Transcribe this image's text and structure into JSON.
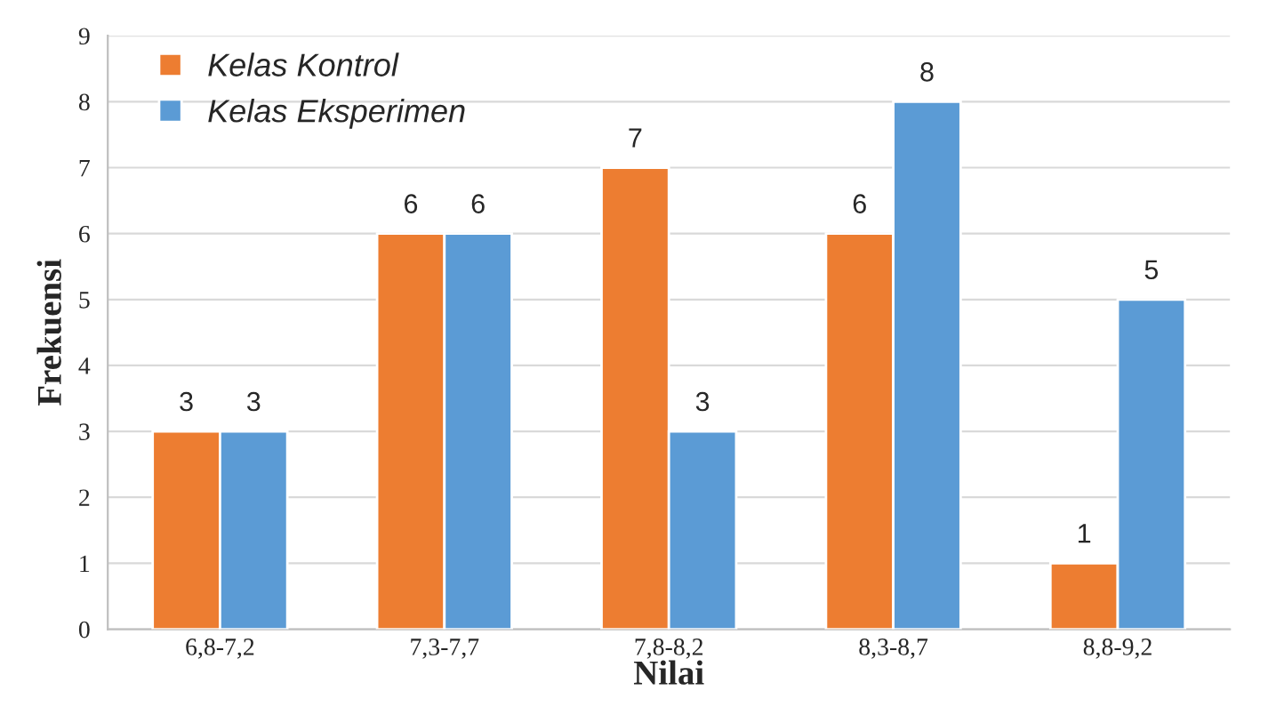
{
  "chart_data": {
    "type": "bar",
    "xlabel": "Nilai",
    "ylabel": "Frekuensi",
    "categories": [
      "6,8-7,2",
      "7,3-7,7",
      "7,8-8,2",
      "8,3-8,7",
      "8,8-9,2"
    ],
    "series": [
      {
        "name": "Kelas Kontrol",
        "color": "#ed7d31",
        "values": [
          3,
          6,
          7,
          6,
          1
        ]
      },
      {
        "name": "Kelas Eksperimen",
        "color": "#5b9bd5",
        "values": [
          3,
          6,
          3,
          8,
          5
        ]
      }
    ],
    "ylim": [
      0,
      9
    ],
    "yticks": [
      0,
      1,
      2,
      3,
      4,
      5,
      6,
      7,
      8,
      9
    ],
    "grid": "y",
    "legend": "top left",
    "data_labels": true
  }
}
